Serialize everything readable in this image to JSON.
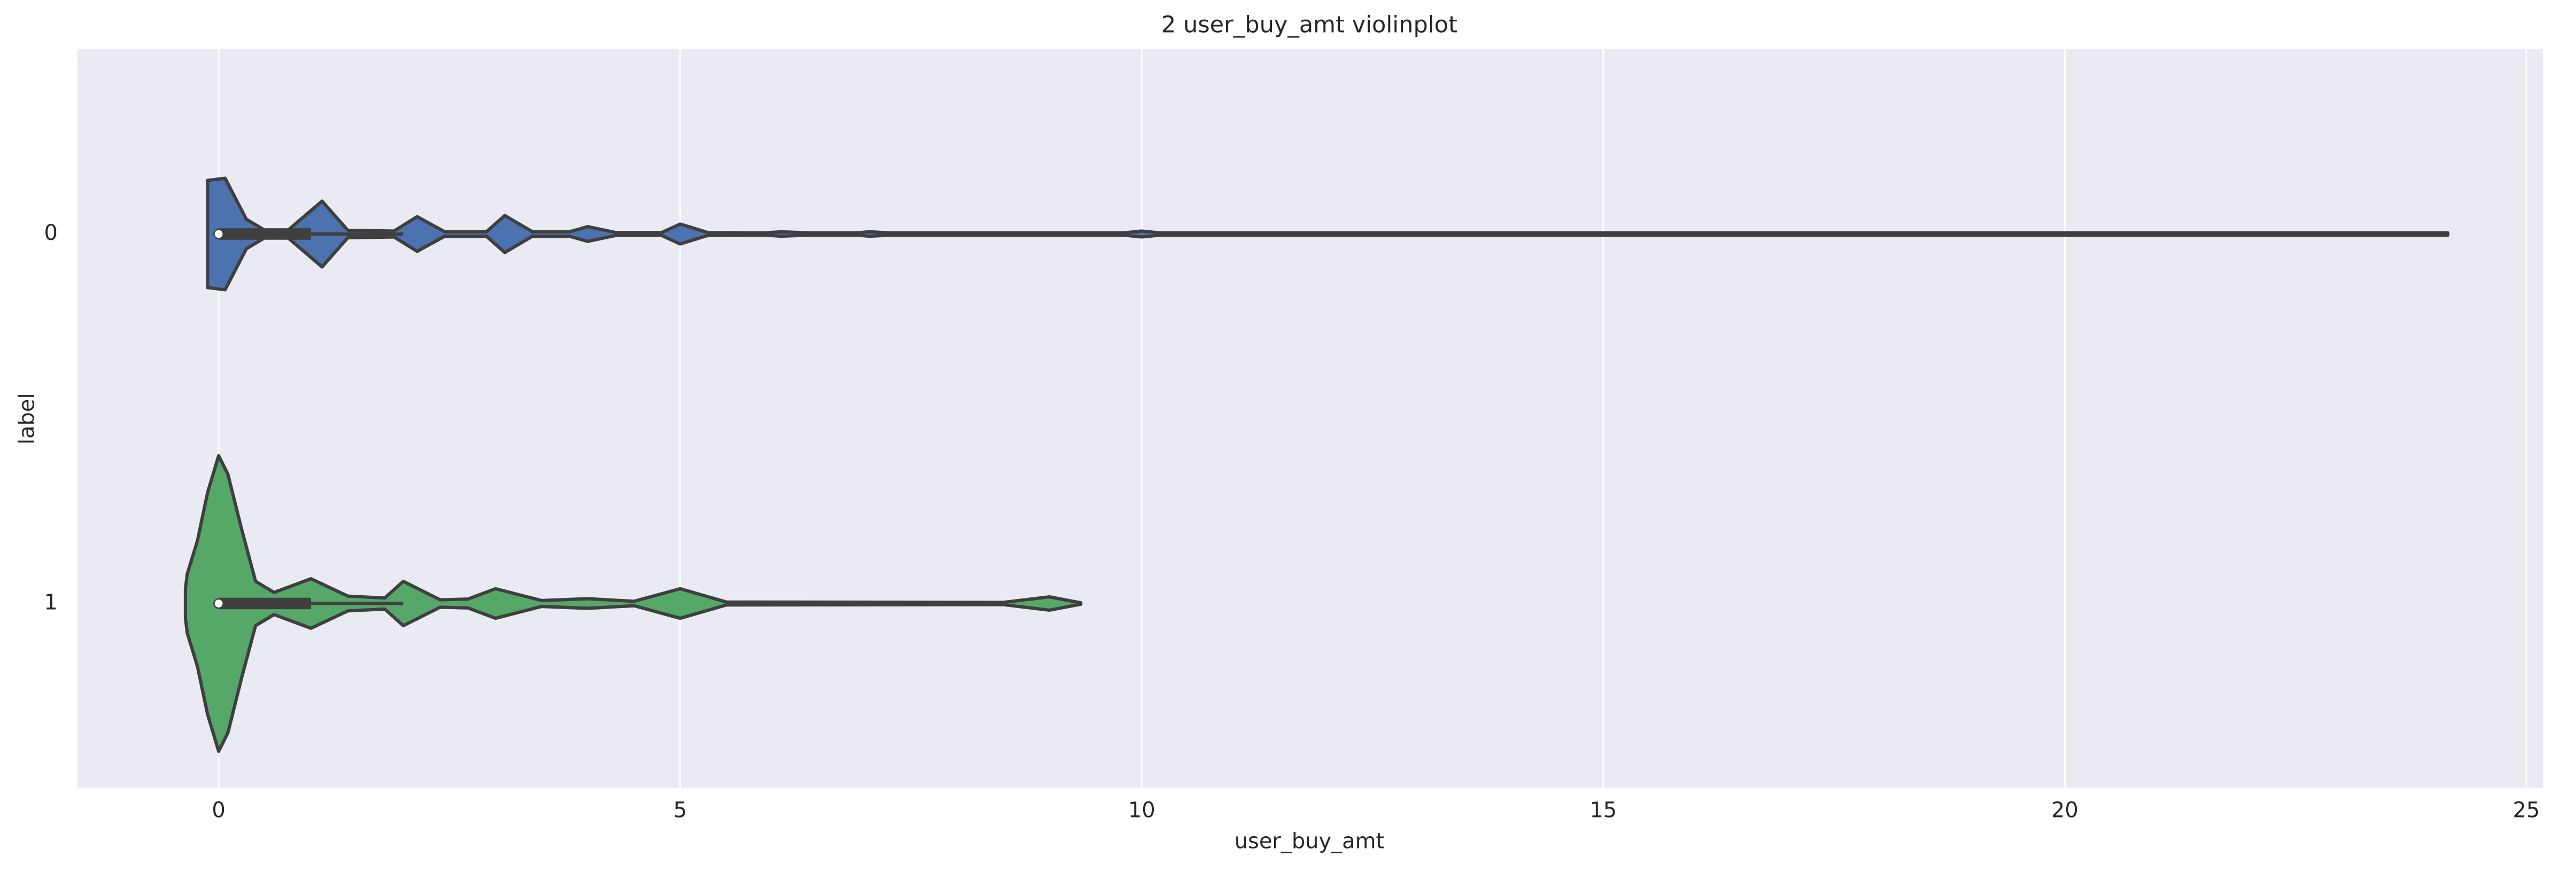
{
  "chart_data": {
    "type": "violin",
    "title": "2 user_buy_amt violinplot",
    "x_label": "user_buy_amt",
    "y_label": "label",
    "categories": [
      "0",
      "1"
    ],
    "xlim": [
      -1.53,
      25.18
    ],
    "xticks": [
      0,
      5,
      10,
      15,
      20,
      25
    ],
    "grid": true,
    "background": "#eaeaf2",
    "line_color": "#3f3f3f",
    "violins": [
      {
        "color": "#4c72b0",
        "density": {
          "x": [
            -0.12,
            0.07,
            0.3,
            0.5,
            0.75,
            1.12,
            1.4,
            1.9,
            2.15,
            2.45,
            2.9,
            3.1,
            3.4,
            3.8,
            4.0,
            4.3,
            4.8,
            5.0,
            5.3,
            5.9,
            6.1,
            6.4,
            6.9,
            7.05,
            7.3,
            9.8,
            10.0,
            10.2,
            24.15
          ],
          "width": [
            0.145,
            0.151,
            0.04,
            0.01,
            0.01,
            0.089,
            0.01,
            0.008,
            0.047,
            0.006,
            0.006,
            0.05,
            0.006,
            0.006,
            0.02,
            0.004,
            0.004,
            0.027,
            0.004,
            0.003,
            0.006,
            0.003,
            0.003,
            0.006,
            0.003,
            0.003,
            0.008,
            0.003,
            0.003
          ]
        },
        "whisker_low": 0,
        "q1": 0,
        "median": 0,
        "q3": 1.0,
        "whisker_high": 2.0
      },
      {
        "color": "#55a868",
        "density": {
          "x": [
            -0.36,
            -0.34,
            -0.23,
            -0.12,
            0.0,
            0.1,
            0.25,
            0.4,
            0.6,
            1.0,
            1.4,
            1.8,
            2.0,
            2.4,
            2.7,
            3.0,
            3.5,
            4.0,
            4.5,
            5.0,
            5.5,
            8.5,
            9.0,
            9.34
          ],
          "width": [
            0.04,
            0.08,
            0.17,
            0.3,
            0.4,
            0.35,
            0.2,
            0.06,
            0.03,
            0.067,
            0.02,
            0.015,
            0.06,
            0.01,
            0.012,
            0.04,
            0.008,
            0.013,
            0.006,
            0.04,
            0.004,
            0.003,
            0.018,
            0.002
          ]
        },
        "whisker_low": 0,
        "q1": 0,
        "median": 0,
        "q3": 1.0,
        "whisker_high": 2.0
      }
    ]
  }
}
